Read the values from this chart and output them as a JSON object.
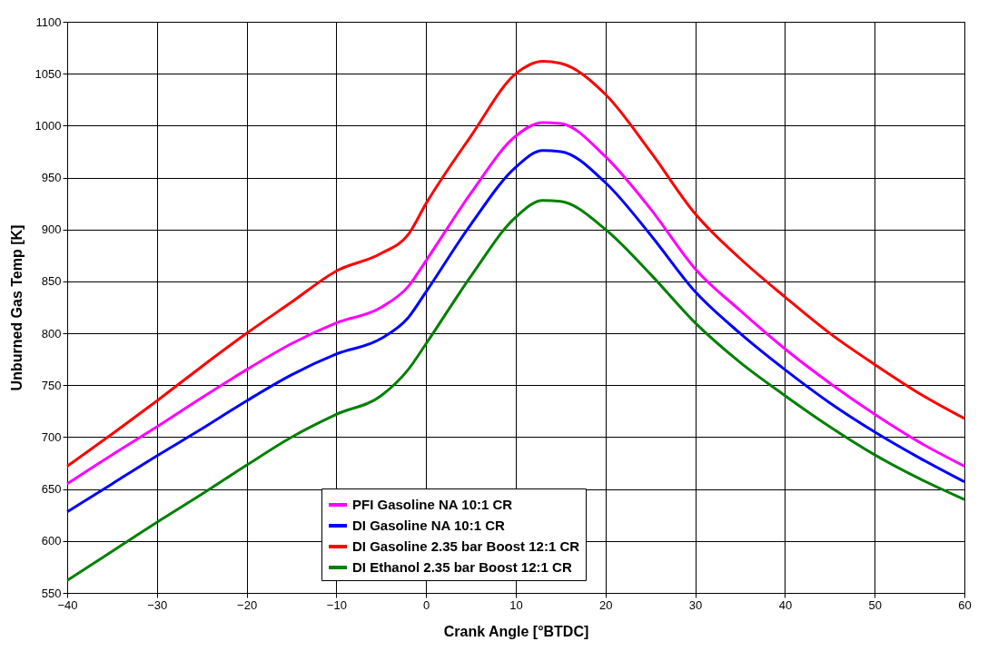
{
  "chart_data": {
    "type": "line",
    "xlabel": "Crank Angle [°BTDC]",
    "ylabel": "Unburned Gas Temp [K]",
    "x": [
      -40,
      -35,
      -30,
      -25,
      -20,
      -15,
      -10,
      -5,
      -2,
      0,
      5,
      10,
      13,
      15,
      20,
      25,
      30,
      35,
      40,
      45,
      50,
      55,
      60
    ],
    "series": [
      {
        "name": "PFI Gasoline NA 10:1 CR",
        "color": "#ff00ff",
        "values": [
          655,
          683,
          710,
          738,
          765,
          790,
          810,
          825,
          845,
          870,
          935,
          990,
          1003,
          1002,
          970,
          920,
          862,
          822,
          785,
          752,
          722,
          695,
          672
        ]
      },
      {
        "name": "DI Gasoline NA 10:1 CR",
        "color": "#0000ff",
        "values": [
          628,
          655,
          682,
          708,
          735,
          760,
          780,
          795,
          815,
          840,
          905,
          960,
          976,
          975,
          945,
          895,
          840,
          800,
          765,
          733,
          705,
          680,
          657
        ]
      },
      {
        "name": "DI Gasoline 2.35 bar Boost 12:1 CR",
        "color": "#ff0000",
        "values": [
          672,
          703,
          735,
          768,
          800,
          830,
          860,
          877,
          895,
          925,
          990,
          1050,
          1062,
          1060,
          1030,
          975,
          915,
          872,
          835,
          800,
          770,
          742,
          718
        ]
      },
      {
        "name": "DI Ethanol 2.35 bar Boost 12:1 CR",
        "color": "#008000",
        "values": [
          562,
          590,
          618,
          645,
          673,
          700,
          722,
          740,
          765,
          790,
          855,
          912,
          928,
          927,
          900,
          857,
          810,
          772,
          740,
          710,
          683,
          660,
          640
        ]
      }
    ],
    "xlim": [
      -40,
      60
    ],
    "xticks": [
      -40,
      -30,
      -20,
      -10,
      0,
      10,
      20,
      30,
      40,
      50,
      60
    ],
    "ylim": [
      550,
      1100
    ],
    "yticks": [
      550,
      600,
      650,
      700,
      750,
      800,
      850,
      900,
      950,
      1000,
      1050,
      1100
    ],
    "grid": true,
    "legend": "bottom",
    "marker": "none",
    "line_style": "solid"
  }
}
